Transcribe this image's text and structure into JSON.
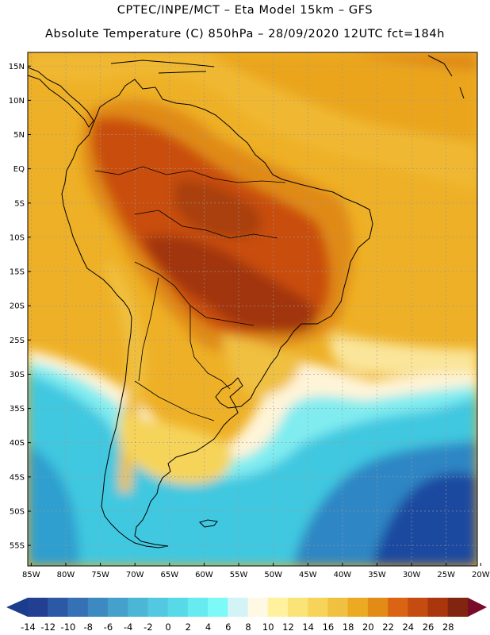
{
  "header": {
    "line1": "CPTEC/INPE/MCT – Eta Model 15km – GFS",
    "line2": "Absolute Temperature (C) 850hPa – 28/09/2020 12UTC fct=184h"
  },
  "map": {
    "lat_labels": [
      "15N",
      "10N",
      "5N",
      "EQ",
      "5S",
      "10S",
      "15S",
      "20S",
      "25S",
      "30S",
      "35S",
      "40S",
      "45S",
      "50S",
      "55S"
    ],
    "lon_labels": [
      "85W",
      "80W",
      "75W",
      "70W",
      "65W",
      "60W",
      "55W",
      "50W",
      "45W",
      "40W",
      "35W",
      "30W",
      "25W",
      "20W"
    ],
    "lat_range": [
      17,
      -58
    ],
    "lon_range": [
      -85.5,
      -20.5
    ],
    "temperature_zones": [
      {
        "name": "very_hot",
        "value_c": 26,
        "color": "#a1360f"
      },
      {
        "name": "hot",
        "value_c": 24,
        "color": "#c94e11"
      },
      {
        "name": "warm",
        "value_c": 20,
        "color": "#e08a18"
      },
      {
        "name": "mild_warm",
        "value_c": 18,
        "color": "#eaa51f"
      },
      {
        "name": "mild",
        "value_c": 16,
        "color": "#f0c040"
      },
      {
        "name": "cool_mild",
        "value_c": 10,
        "color": "#fae59a"
      },
      {
        "name": "cool",
        "value_c": 6,
        "color": "#fff4d8"
      },
      {
        "name": "cold",
        "value_c": 2,
        "color": "#80ecf0"
      },
      {
        "name": "colder",
        "value_c": -2,
        "color": "#40c8e0"
      },
      {
        "name": "very_cold",
        "value_c": -8,
        "color": "#2f86c4"
      },
      {
        "name": "coldest",
        "value_c": -14,
        "color": "#1f4aa0"
      }
    ]
  },
  "colorbar": {
    "labels": [
      "-14",
      "-12",
      "-10",
      "-8",
      "-6",
      "-4",
      "-2",
      "0",
      "2",
      "4",
      "6",
      "8",
      "10",
      "12",
      "14",
      "16",
      "18",
      "20",
      "22",
      "24",
      "26",
      "28"
    ],
    "colors": [
      "#233f92",
      "#2c59a6",
      "#3571b4",
      "#3d89c1",
      "#45a0cc",
      "#4cb6d6",
      "#52c9e0",
      "#58d9e8",
      "#66ebf1",
      "#7df9f7",
      "#d2f4f6",
      "#fff8e4",
      "#fff19e",
      "#fae478",
      "#f6d45a",
      "#f0c040",
      "#ebaa22",
      "#e38b17",
      "#db6414",
      "#c44c10",
      "#a9360d",
      "#812510"
    ],
    "under_color": "#1c3d8c",
    "over_color": "#780a2a",
    "units": "C"
  }
}
